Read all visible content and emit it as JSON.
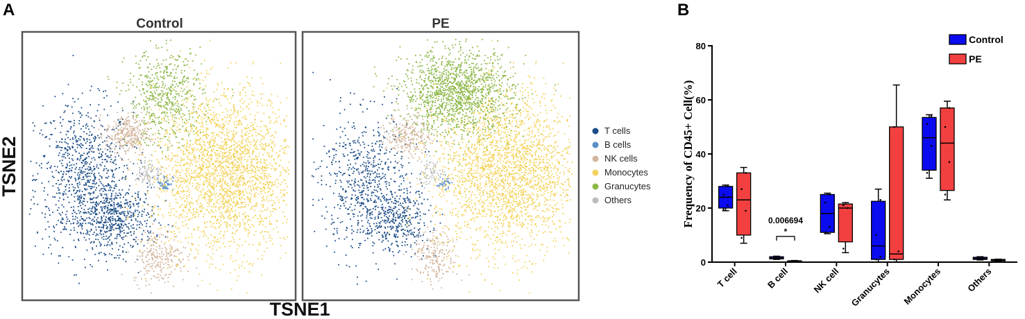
{
  "chart_data": [
    {
      "type": "scatter",
      "panel_label": "A",
      "facets": [
        {
          "name": "Control",
          "clusters": [
            {
              "type": "T cells",
              "cx": -28,
              "cy": -4,
              "sx": 9,
              "sy": 14,
              "n": 900
            },
            {
              "type": "T cells",
              "cx": -16,
              "cy": -20,
              "sx": 7,
              "sy": 6,
              "n": 500
            },
            {
              "type": "B cells",
              "cx": 2,
              "cy": -6,
              "sx": 1.5,
              "sy": 1.5,
              "n": 60
            },
            {
              "type": "NK cells",
              "cx": -12,
              "cy": 12,
              "sx": 4,
              "sy": 4,
              "n": 300
            },
            {
              "type": "NK cells",
              "cx": 0,
              "cy": -34,
              "sx": 5,
              "sy": 5,
              "n": 250
            },
            {
              "type": "Monocytes",
              "cx": 24,
              "cy": -2,
              "sx": 13,
              "sy": 15,
              "n": 2500
            },
            {
              "type": "Granucytes",
              "cx": 2,
              "cy": 26,
              "sx": 7,
              "sy": 9,
              "n": 550
            },
            {
              "type": "Others",
              "cx": -4,
              "cy": -2,
              "sx": 2.5,
              "sy": 2.5,
              "n": 90
            }
          ]
        },
        {
          "name": "PE",
          "clusters": [
            {
              "type": "T cells",
              "cx": -28,
              "cy": -6,
              "sx": 8,
              "sy": 13,
              "n": 650
            },
            {
              "type": "T cells",
              "cx": -16,
              "cy": -20,
              "sx": 6,
              "sy": 6,
              "n": 350
            },
            {
              "type": "B cells",
              "cx": 1,
              "cy": -6,
              "sx": 1.2,
              "sy": 1.2,
              "n": 40
            },
            {
              "type": "NK cells",
              "cx": -12,
              "cy": 12,
              "sx": 4,
              "sy": 4,
              "n": 250
            },
            {
              "type": "NK cells",
              "cx": -2,
              "cy": -34,
              "sx": 4,
              "sy": 5,
              "n": 200
            },
            {
              "type": "Monocytes",
              "cx": 24,
              "cy": -2,
              "sx": 13,
              "sy": 15,
              "n": 2400
            },
            {
              "type": "Granucytes",
              "cx": 6,
              "cy": 28,
              "sx": 10,
              "sy": 8,
              "n": 1400
            },
            {
              "type": "Others",
              "cx": -4,
              "cy": -2,
              "sx": 2.5,
              "sy": 2.5,
              "n": 70
            }
          ]
        }
      ],
      "xlabel": "TSNE1",
      "ylabel": "TSNE2",
      "legend": [
        {
          "name": "T cells",
          "color": "#1c4d87"
        },
        {
          "name": "B cells",
          "color": "#5b8fc4"
        },
        {
          "name": "NK cells",
          "color": "#d2b59c"
        },
        {
          "name": "Monocytes",
          "color": "#f3d35c"
        },
        {
          "name": "Granucytes",
          "color": "#8db84a"
        },
        {
          "name": "Others",
          "color": "#bdbdbd"
        }
      ],
      "legend_position": "right"
    },
    {
      "type": "box",
      "panel_label": "B",
      "ylabel": "Frequency of CD45+ Cell(%)",
      "ylim": [
        0,
        80
      ],
      "yticks": [
        "0",
        "20",
        "40",
        "60",
        "80"
      ],
      "categories": [
        "T cell",
        "B cell",
        "NK cell",
        "Granucytes",
        "Monocytes",
        "Others"
      ],
      "series": [
        {
          "name": "Control",
          "color": "#0b0bf0",
          "boxes": [
            {
              "min": 19,
              "q1": 20,
              "median": 24,
              "q3": 28,
              "max": 28.5,
              "points": [
                19.5,
                21,
                25,
                28
              ]
            },
            {
              "min": 1,
              "q1": 1.2,
              "median": 1.5,
              "q3": 2,
              "max": 2.2,
              "points": [
                1.2,
                1.6,
                2
              ]
            },
            {
              "min": 10.5,
              "q1": 11,
              "median": 18,
              "q3": 25,
              "max": 25.5,
              "points": [
                11,
                13,
                22,
                25
              ]
            },
            {
              "min": 0,
              "q1": 1,
              "median": 6,
              "q3": 22.5,
              "max": 27,
              "points": [
                1,
                2,
                10,
                23
              ]
            },
            {
              "min": 31,
              "q1": 34,
              "median": 46,
              "q3": 53.5,
              "max": 54.5,
              "points": [
                33,
                43,
                51,
                54
              ]
            },
            {
              "min": 0.8,
              "q1": 1,
              "median": 1.3,
              "q3": 1.8,
              "max": 2,
              "points": [
                1,
                1.3,
                1.8
              ]
            }
          ]
        },
        {
          "name": "PE",
          "color": "#f24040",
          "boxes": [
            {
              "min": 7,
              "q1": 10,
              "median": 23,
              "q3": 33,
              "max": 35,
              "points": [
                9,
                19,
                27,
                33
              ]
            },
            {
              "min": 0.1,
              "q1": 0.2,
              "median": 0.3,
              "q3": 0.5,
              "max": 0.6,
              "points": [
                0.2,
                0.4
              ]
            },
            {
              "min": 3.5,
              "q1": 7.5,
              "median": 20,
              "q3": 21.5,
              "max": 22,
              "points": [
                5,
                20,
                21
              ]
            },
            {
              "min": 0,
              "q1": 1,
              "median": 3,
              "q3": 50,
              "max": 65.5,
              "points": [
                1,
                4,
                50
              ]
            },
            {
              "min": 23,
              "q1": 26.5,
              "median": 44,
              "q3": 57,
              "max": 59.5,
              "points": [
                25,
                37,
                50,
                57
              ]
            },
            {
              "min": 0.3,
              "q1": 0.5,
              "median": 0.7,
              "q3": 1,
              "max": 1.1,
              "points": [
                0.5,
                0.9
              ]
            }
          ]
        }
      ],
      "annotations": [
        {
          "category": "B cell",
          "text": "0.006694",
          "mark": "*"
        }
      ],
      "legend_position": "top-right"
    }
  ]
}
